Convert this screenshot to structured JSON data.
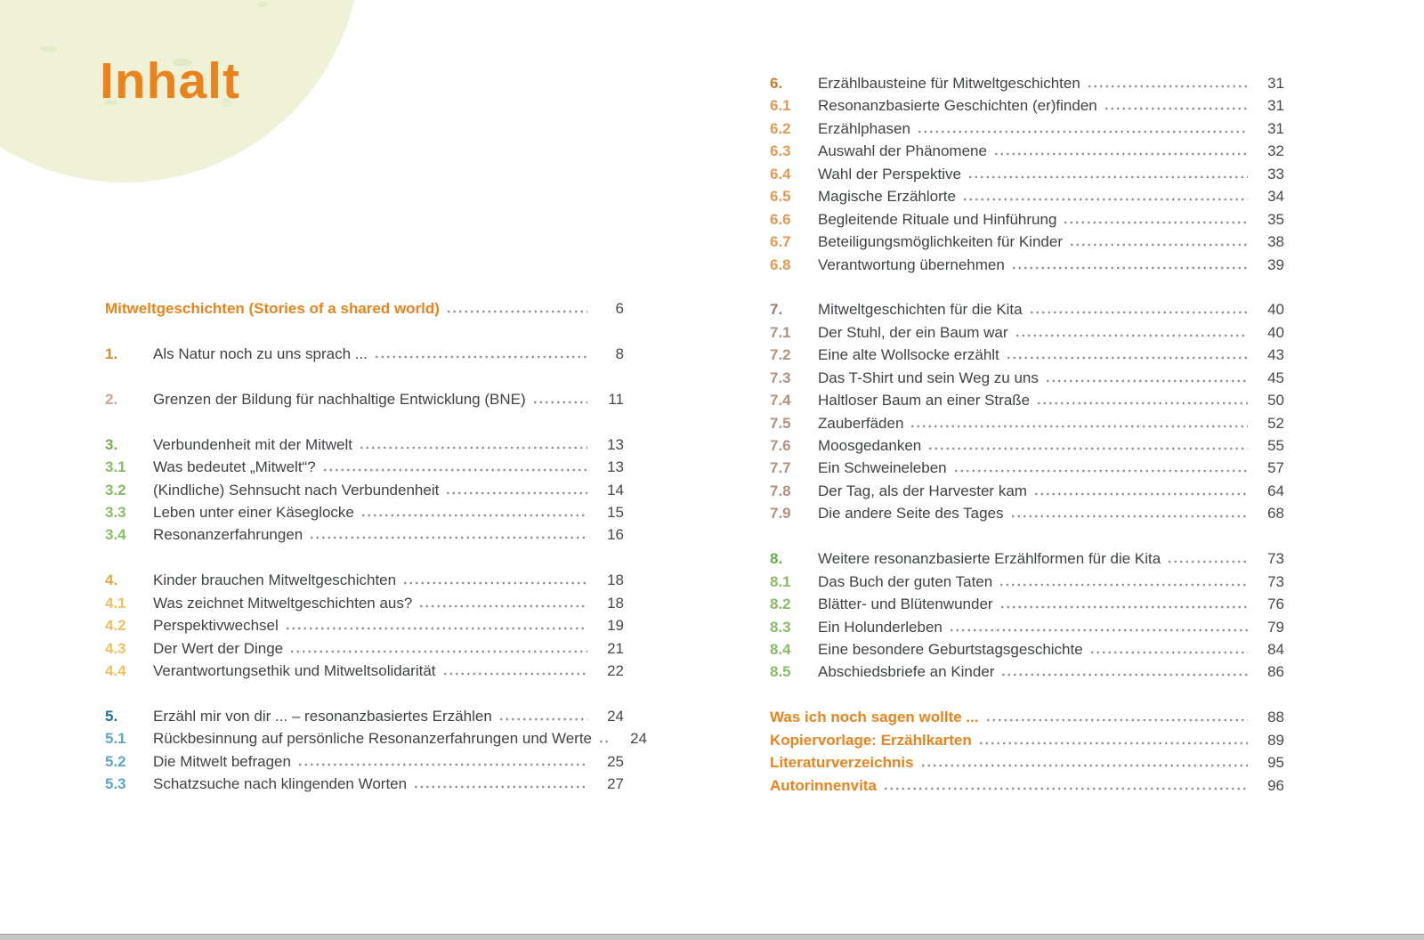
{
  "page": {
    "title": "Inhalt"
  },
  "colors": {
    "accent": "#e8831d",
    "title_text": "#3f4245",
    "page_number": "#46484a",
    "dot_leader": "#949494",
    "circle_fill": "#f0f2d8",
    "bottom_bar": "#c6c6c6"
  },
  "left_column": {
    "groups": [
      {
        "items": [
          {
            "heading": true,
            "num": "",
            "title": "Mitweltgeschichten (Stories of a shared world)",
            "page": "6"
          }
        ]
      },
      {
        "items": [
          {
            "num": "1.",
            "color": "#dd8a2f",
            "title": "Als Natur noch zu uns sprach ...",
            "page": "8"
          }
        ]
      },
      {
        "items": [
          {
            "num": "2.",
            "color": "#d4a38f",
            "title": "Grenzen der Bildung für nachhaltige Entwicklung (BNE)",
            "page": "11"
          }
        ]
      },
      {
        "items": [
          {
            "num": "3.",
            "color": "#6fae4c",
            "title": "Verbundenheit mit der Mitwelt",
            "page": "13"
          },
          {
            "num": "3.1",
            "color": "#88bc66",
            "title": "Was bedeutet „Mitwelt“?",
            "page": "13"
          },
          {
            "num": "3.2",
            "color": "#88bc66",
            "title": "(Kindliche) Sehnsucht nach Verbundenheit",
            "page": "14"
          },
          {
            "num": "3.3",
            "color": "#88bc66",
            "title": "Leben unter einer Käseglocke",
            "page": "15"
          },
          {
            "num": "3.4",
            "color": "#88bc66",
            "title": "Resonanzerfahrungen",
            "page": "16"
          }
        ]
      },
      {
        "items": [
          {
            "num": "4.",
            "color": "#e3a83d",
            "title": "Kinder brauchen Mitweltgeschichten",
            "page": "18"
          },
          {
            "num": "4.1",
            "color": "#eec164",
            "title": "Was zeichnet Mitweltgeschichten aus?",
            "page": "18"
          },
          {
            "num": "4.2",
            "color": "#eec164",
            "title": "Perspektivwechsel",
            "page": "19"
          },
          {
            "num": "4.3",
            "color": "#eec164",
            "title": "Der Wert der Dinge",
            "page": "21"
          },
          {
            "num": "4.4",
            "color": "#eec164",
            "title": "Verantwortungsethik und Mitweltsolidarität",
            "page": "22"
          }
        ]
      },
      {
        "items": [
          {
            "num": "5.",
            "color": "#1b71a1",
            "title": "Erzähl mir von dir ... – resonanzbasiertes Erzählen",
            "page": "24"
          },
          {
            "num": "5.1",
            "color": "#60a4c6",
            "title": "Rückbesinnung auf persönliche Resonanzerfahrungen und Werte",
            "page": "24"
          },
          {
            "num": "5.2",
            "color": "#60a4c6",
            "title": "Die Mitwelt befragen",
            "page": "25"
          },
          {
            "num": "5.3",
            "color": "#60a4c6",
            "title": "Schatzsuche nach klingenden Worten",
            "page": "27"
          }
        ]
      }
    ]
  },
  "right_column": {
    "groups": [
      {
        "items": [
          {
            "num": "6.",
            "color": "#d1782e",
            "title": "Erzählbausteine für Mitweltgeschichten",
            "page": "31"
          },
          {
            "num": "6.1",
            "color": "#e39a55",
            "title": "Resonanzbasierte Geschichten (er)finden",
            "page": "31"
          },
          {
            "num": "6.2",
            "color": "#e39a55",
            "title": "Erzählphasen",
            "page": "31"
          },
          {
            "num": "6.3",
            "color": "#e39a55",
            "title": "Auswahl der Phänomene",
            "page": "32"
          },
          {
            "num": "6.4",
            "color": "#e39a55",
            "title": "Wahl der Perspektive",
            "page": "33"
          },
          {
            "num": "6.5",
            "color": "#e39a55",
            "title": "Magische Erzählorte",
            "page": "34"
          },
          {
            "num": "6.6",
            "color": "#e39a55",
            "title": "Begleitende Rituale und Hinführung",
            "page": "35"
          },
          {
            "num": "6.7",
            "color": "#e39a55",
            "title": "Beteiligungsmöglichkeiten für Kinder",
            "page": "38"
          },
          {
            "num": "6.8",
            "color": "#e39a55",
            "title": "Verantwortung übernehmen",
            "page": "39"
          }
        ]
      },
      {
        "items": [
          {
            "num": "7.",
            "color": "#9c7b67",
            "title": "Mitweltgeschichten für die Kita",
            "page": "40"
          },
          {
            "num": "7.1",
            "color": "#b29181",
            "title": "Der Stuhl, der ein Baum war",
            "page": "40"
          },
          {
            "num": "7.2",
            "color": "#b29181",
            "title": "Eine alte Wollsocke erzählt",
            "page": "43"
          },
          {
            "num": "7.3",
            "color": "#b29181",
            "title": "Das T-Shirt und sein Weg zu uns",
            "page": "45"
          },
          {
            "num": "7.4",
            "color": "#b29181",
            "title": "Haltloser Baum an einer Straße",
            "page": "50"
          },
          {
            "num": "7.5",
            "color": "#b29181",
            "title": "Zauberfäden",
            "page": "52"
          },
          {
            "num": "7.6",
            "color": "#b29181",
            "title": "Moosgedanken",
            "page": "55"
          },
          {
            "num": "7.7",
            "color": "#b29181",
            "title": "Ein Schweineleben",
            "page": "57"
          },
          {
            "num": "7.8",
            "color": "#b29181",
            "title": "Der Tag, als der Harvester kam",
            "page": "64"
          },
          {
            "num": "7.9",
            "color": "#b29181",
            "title": "Die andere Seite des Tages",
            "page": "68"
          }
        ]
      },
      {
        "items": [
          {
            "num": "8.",
            "color": "#67aa4b",
            "title": "Weitere resonanzbasierte Erzählformen für die Kita",
            "page": "73"
          },
          {
            "num": "8.1",
            "color": "#8abc67",
            "title": "Das Buch der guten Taten",
            "page": "73"
          },
          {
            "num": "8.2",
            "color": "#8abc67",
            "title": "Blätter- und Blütenwunder",
            "page": "76"
          },
          {
            "num": "8.3",
            "color": "#8abc67",
            "title": "Ein Holunderleben",
            "page": "79"
          },
          {
            "num": "8.4",
            "color": "#8abc67",
            "title": "Eine besondere Geburtstagsgeschichte",
            "page": "84"
          },
          {
            "num": "8.5",
            "color": "#8abc67",
            "title": "Abschiedsbriefe an Kinder",
            "page": "86"
          }
        ]
      },
      {
        "items": [
          {
            "heading": true,
            "num": "",
            "title": "Was ich noch sagen wollte ...",
            "page": "88"
          },
          {
            "heading": true,
            "num": "",
            "title": "Kopiervorlage: Erzählkarten",
            "page": "89"
          },
          {
            "heading": true,
            "num": "",
            "title": "Literaturverzeichnis",
            "page": "95"
          },
          {
            "heading": true,
            "num": "",
            "title": "Autorinnenvita",
            "page": "96"
          }
        ]
      }
    ]
  }
}
